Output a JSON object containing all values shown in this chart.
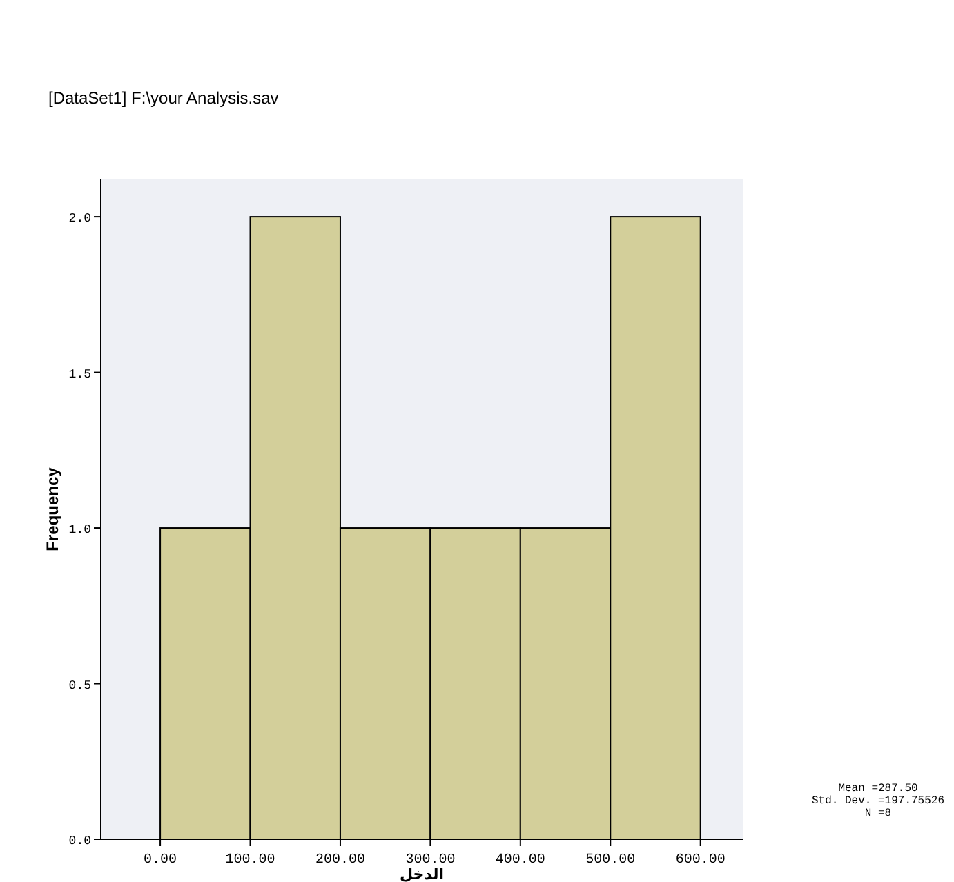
{
  "chart_data": {
    "type": "histogram",
    "subtitle": "[DataSet1] F:\\your Analysis.sav",
    "xlabel": "الدخل",
    "ylabel": "Frequency",
    "bins": [
      0,
      100,
      200,
      300,
      400,
      500,
      600
    ],
    "values": [
      1,
      2,
      1,
      1,
      1,
      2
    ],
    "color": "#d3cf9a",
    "xlim": [
      -66,
      647
    ],
    "ylim": [
      0,
      2.12
    ],
    "xticks": [
      {
        "value": 0,
        "label": "0.00"
      },
      {
        "value": 100,
        "label": "100.00"
      },
      {
        "value": 200,
        "label": "200.00"
      },
      {
        "value": 300,
        "label": "300.00"
      },
      {
        "value": 400,
        "label": "400.00"
      },
      {
        "value": 500,
        "label": "500.00"
      },
      {
        "value": 600,
        "label": "600.00"
      }
    ],
    "yticks": [
      {
        "value": 0,
        "label": "0.0"
      },
      {
        "value": 0.5,
        "label": "0.5"
      },
      {
        "value": 1,
        "label": "1.0"
      },
      {
        "value": 1.5,
        "label": "1.5"
      },
      {
        "value": 2,
        "label": "2.0"
      }
    ],
    "annotations": [
      "Mean =287.50",
      "Std. Dev. =197.75526",
      "N =8"
    ],
    "grid": false
  }
}
